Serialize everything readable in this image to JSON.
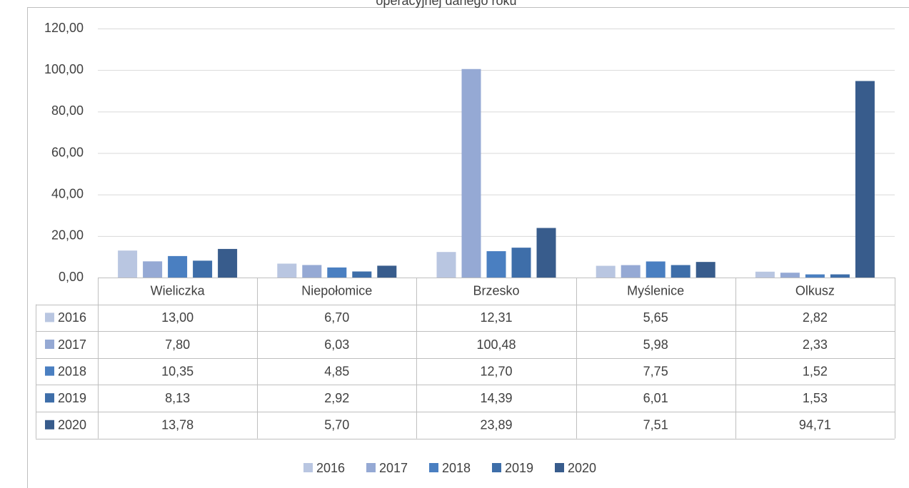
{
  "chart_data": {
    "type": "bar",
    "title": "operacyjnej danego roku",
    "categories": [
      "Wieliczka",
      "Niepołomice",
      "Brzesko",
      "Myślenice",
      "Olkusz"
    ],
    "series": [
      {
        "name": "2016",
        "color": "#b9c6e1",
        "values": [
          13.0,
          6.7,
          12.31,
          5.65,
          2.82
        ],
        "value_labels": [
          "13,00",
          "6,70",
          "12,31",
          "5,65",
          "2,82"
        ]
      },
      {
        "name": "2017",
        "color": "#95a9d4",
        "values": [
          7.8,
          6.03,
          100.48,
          5.98,
          2.33
        ],
        "value_labels": [
          "7,80",
          "6,03",
          "100,48",
          "5,98",
          "2,33"
        ]
      },
      {
        "name": "2018",
        "color": "#4a7fc1",
        "values": [
          10.35,
          4.85,
          12.7,
          7.75,
          1.52
        ],
        "value_labels": [
          "10,35",
          "4,85",
          "12,70",
          "7,75",
          "1,52"
        ]
      },
      {
        "name": "2019",
        "color": "#3e6ea9",
        "values": [
          8.13,
          2.92,
          14.39,
          6.01,
          1.53
        ],
        "value_labels": [
          "8,13",
          "2,92",
          "14,39",
          "6,01",
          "1,53"
        ]
      },
      {
        "name": "2020",
        "color": "#385c8c",
        "values": [
          13.78,
          5.7,
          23.89,
          7.51,
          94.71
        ],
        "value_labels": [
          "13,78",
          "5,70",
          "23,89",
          "7,51",
          "94,71"
        ]
      }
    ],
    "ylim": [
      0,
      120
    ],
    "yticks": [
      {
        "value": 0,
        "label": "0,00"
      },
      {
        "value": 20,
        "label": "20,00"
      },
      {
        "value": 40,
        "label": "40,00"
      },
      {
        "value": 60,
        "label": "60,00"
      },
      {
        "value": 80,
        "label": "80,00"
      },
      {
        "value": 100,
        "label": "100,00"
      },
      {
        "value": 120,
        "label": "120,00"
      }
    ],
    "grid": true
  }
}
